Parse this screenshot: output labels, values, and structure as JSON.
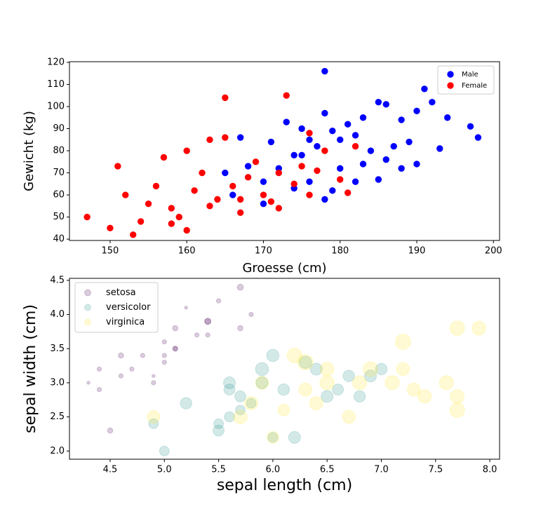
{
  "chart_data": [
    {
      "type": "scatter",
      "xlabel": "Groesse (cm)",
      "ylabel": "Gewicht (kg)",
      "xlim": [
        144.7,
        200.8
      ],
      "ylim": [
        39.4,
        120.3
      ],
      "xticks": [
        150,
        160,
        170,
        180,
        190,
        200
      ],
      "yticks": [
        40,
        50,
        60,
        70,
        80,
        90,
        100,
        110,
        120
      ],
      "legend": "upper right",
      "series": [
        {
          "name": "Male",
          "color": "#0000ff",
          "x": [
            178,
            191,
            198,
            197,
            193,
            192,
            190,
            188,
            186,
            185,
            183,
            182,
            180,
            179,
            178,
            177,
            176,
            175,
            174,
            173,
            172,
            171,
            170,
            168,
            167,
            166,
            165,
            178,
            180,
            182,
            184,
            186,
            188,
            190,
            185,
            187,
            176,
            174,
            181,
            183,
            189,
            194,
            170,
            175,
            179
          ],
          "values": [
            116,
            108,
            86,
            91,
            81,
            102,
            98,
            94,
            101,
            102,
            95,
            87,
            85,
            89,
            97,
            82,
            85,
            90,
            78,
            93,
            72,
            84,
            66,
            73,
            86,
            60,
            70,
            58,
            72,
            66,
            80,
            76,
            72,
            74,
            67,
            82,
            66,
            63,
            92,
            74,
            84,
            95,
            56,
            78,
            62
          ]
        },
        {
          "name": "Female",
          "color": "#ff0000",
          "x": [
            147,
            150,
            151,
            152,
            153,
            154,
            155,
            156,
            157,
            158,
            159,
            160,
            160,
            161,
            162,
            163,
            164,
            165,
            165,
            166,
            167,
            168,
            169,
            170,
            171,
            172,
            173,
            174,
            175,
            176,
            177,
            178,
            180,
            181,
            182,
            158,
            163,
            167,
            172,
            176
          ],
          "values": [
            50,
            45,
            73,
            60,
            42,
            48,
            56,
            64,
            77,
            54,
            50,
            80,
            44,
            62,
            70,
            85,
            58,
            104,
            86,
            64,
            52,
            68,
            75,
            60,
            57,
            70,
            105,
            65,
            73,
            88,
            71,
            80,
            67,
            61,
            82,
            47,
            55,
            58,
            54,
            60
          ]
        }
      ]
    },
    {
      "type": "bubble",
      "xlabel": "sepal length (cm)",
      "ylabel": "sepal width (cm)",
      "xlim": [
        4.125,
        8.09
      ],
      "ylim": [
        1.88,
        4.53
      ],
      "xticks": [
        {
          "value": 4.5,
          "label": "4.5"
        },
        {
          "value": 5,
          "label": "5.0"
        },
        {
          "value": 5.5,
          "label": "5.5"
        },
        {
          "value": 6,
          "label": "6.0"
        },
        {
          "value": 6.5,
          "label": "6.5"
        },
        {
          "value": 7,
          "label": "7.0"
        },
        {
          "value": 7.5,
          "label": "7.5"
        },
        {
          "value": 8,
          "label": "8.0"
        }
      ],
      "yticks": [
        {
          "value": 2,
          "label": "2.0"
        },
        {
          "value": 2.5,
          "label": "2.5"
        },
        {
          "value": 3,
          "label": "3.0"
        },
        {
          "value": 3.5,
          "label": "3.5"
        },
        {
          "value": 4,
          "label": "4.0"
        },
        {
          "value": 4.5,
          "label": "4.5"
        }
      ],
      "legend": "upper left",
      "series": [
        {
          "name": "setosa",
          "color": "#440154",
          "alpha": 0.2,
          "x": [
            5.1,
            4.9,
            4.7,
            4.6,
            5.0,
            5.4,
            4.6,
            5.0,
            4.4,
            4.9,
            5.4,
            4.8,
            4.3,
            5.8,
            5.7,
            5.4,
            5.1,
            5.7,
            5.1,
            5.2,
            5.5,
            4.5,
            5.0,
            5.3,
            4.4
          ],
          "values": [
            3.5,
            3.0,
            3.2,
            3.1,
            3.6,
            3.9,
            3.4,
            3.4,
            2.9,
            3.1,
            3.7,
            3.4,
            3.0,
            4.0,
            4.4,
            3.9,
            3.5,
            3.8,
            3.8,
            4.1,
            4.2,
            2.3,
            3.3,
            3.7,
            3.2
          ],
          "sizes": [
            0.2,
            0.2,
            0.2,
            0.2,
            0.2,
            0.4,
            0.3,
            0.2,
            0.2,
            0.1,
            0.2,
            0.2,
            0.1,
            0.2,
            0.4,
            0.4,
            0.3,
            0.3,
            0.3,
            0.1,
            0.2,
            0.3,
            0.2,
            0.2,
            0.2
          ]
        },
        {
          "name": "versicolor",
          "color": "#21918c",
          "alpha": 0.2,
          "x": [
            7.0,
            6.4,
            6.9,
            5.5,
            6.5,
            5.7,
            6.3,
            4.9,
            6.6,
            5.2,
            5.0,
            5.9,
            6.0,
            6.1,
            5.6,
            6.7,
            5.6,
            5.8,
            6.2,
            5.6,
            5.9,
            6.0,
            5.5,
            6.8,
            5.7
          ],
          "values": [
            3.2,
            3.2,
            3.1,
            2.3,
            2.8,
            2.8,
            3.3,
            2.4,
            2.9,
            2.7,
            2.0,
            3.0,
            2.2,
            2.9,
            2.9,
            3.1,
            3.0,
            2.7,
            2.2,
            2.5,
            3.2,
            3.4,
            2.4,
            2.8,
            2.6
          ],
          "sizes": [
            1.4,
            1.5,
            1.5,
            1.3,
            1.5,
            1.3,
            1.6,
            1.0,
            1.3,
            1.4,
            1.0,
            1.5,
            1.0,
            1.4,
            1.3,
            1.4,
            1.5,
            1.0,
            1.5,
            1.1,
            1.8,
            1.6,
            1.0,
            1.4,
            1.0
          ]
        },
        {
          "name": "virginica",
          "color": "#fde725",
          "alpha": 0.2,
          "x": [
            6.3,
            5.8,
            7.1,
            6.3,
            6.5,
            7.6,
            4.9,
            7.3,
            6.7,
            7.2,
            6.5,
            6.4,
            6.8,
            5.7,
            7.7,
            7.7,
            6.0,
            6.9,
            7.7,
            7.9,
            7.4,
            6.1,
            7.2,
            6.2,
            5.9
          ],
          "values": [
            3.3,
            2.7,
            3.0,
            2.9,
            3.0,
            3.0,
            2.5,
            2.9,
            2.5,
            3.6,
            3.2,
            2.7,
            3.0,
            2.5,
            3.8,
            2.6,
            2.2,
            3.2,
            2.8,
            3.8,
            2.8,
            2.6,
            3.2,
            3.4,
            3.0
          ],
          "sizes": [
            2.5,
            1.9,
            2.1,
            1.8,
            2.2,
            2.1,
            1.7,
            1.8,
            1.8,
            2.5,
            2.0,
            1.9,
            2.1,
            2.0,
            2.2,
            2.3,
            1.5,
            2.3,
            2.0,
            2.0,
            1.9,
            1.4,
            1.8,
            2.3,
            1.8
          ]
        }
      ]
    }
  ]
}
